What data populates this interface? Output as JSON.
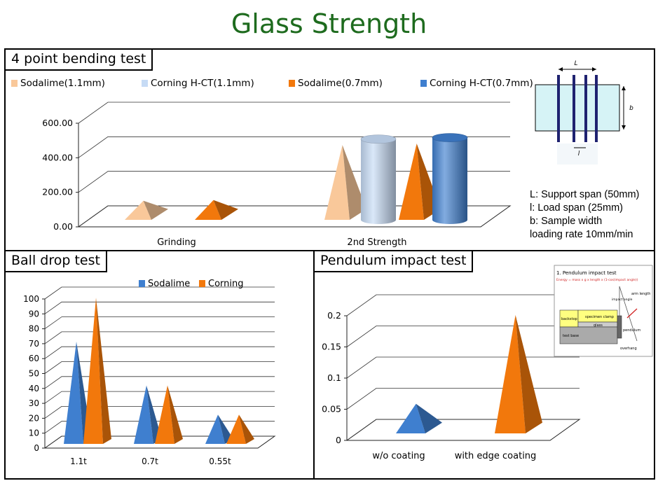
{
  "page_title": "Glass Strength",
  "colors": {
    "sodalime_light": "#f9c89a",
    "corning_light": "#c6dbf5",
    "sodalime": "#f2780c",
    "corning": "#3f7fcf",
    "title_green": "#1e6b1e"
  },
  "bending": {
    "title": "4 point bending test",
    "notes": [
      "L: Support span (50mm)",
      "l: Load span (25mm)",
      "b: Sample width",
      "loading rate 10mm/min"
    ],
    "diagram_labels": {
      "L": "L",
      "l": "l",
      "b": "b"
    }
  },
  "ball": {
    "title": "Ball drop test"
  },
  "pendulum": {
    "title": "Pendulum impact test",
    "inset": {
      "title": "1. Pendulum impact test",
      "formula": "Energy = mass x g x length x (1-cos(impact angle))",
      "labels": [
        "backstop",
        "specimen clamp",
        "glass",
        "test base",
        "pendulum",
        "arm length",
        "impact angle",
        "overhang"
      ]
    }
  },
  "chart_data": [
    {
      "type": "bar",
      "title": "",
      "categories": [
        "Grinding",
        "2nd Strength"
      ],
      "series": [
        {
          "name": "Sodalime(1.1mm)",
          "values": [
            130,
            510
          ]
        },
        {
          "name": "Corning H-CT(1.1mm)",
          "values": [
            null,
            550
          ]
        },
        {
          "name": "Sodalime(0.7mm)",
          "values": [
            135,
            520
          ]
        },
        {
          "name": "Corning H-CT(0.7mm)",
          "values": [
            null,
            560
          ]
        }
      ],
      "yticks": [
        "0.00",
        "200.00",
        "400.00",
        "600.00"
      ],
      "ylim": [
        0,
        600
      ],
      "legend": "top"
    },
    {
      "type": "bar",
      "title": "",
      "categories": [
        "1.1t",
        "0.7t",
        "0.55t"
      ],
      "series": [
        {
          "name": "Sodalime",
          "values": [
            70,
            40,
            20
          ]
        },
        {
          "name": "Corning",
          "values": [
            100,
            40,
            20
          ]
        }
      ],
      "yticks": [
        "0",
        "10",
        "20",
        "30",
        "40",
        "50",
        "60",
        "70",
        "80",
        "90",
        "100"
      ],
      "ylim": [
        0,
        100
      ],
      "legend": "top"
    },
    {
      "type": "bar",
      "title": "",
      "categories": [
        "w/o coating",
        "with edge coating"
      ],
      "series": [
        {
          "name": "",
          "values": [
            0.05,
            0.2
          ]
        }
      ],
      "yticks": [
        "0",
        "0.05",
        "0.1",
        "0.15",
        "0.2"
      ],
      "ylim": [
        0,
        0.22
      ]
    }
  ]
}
